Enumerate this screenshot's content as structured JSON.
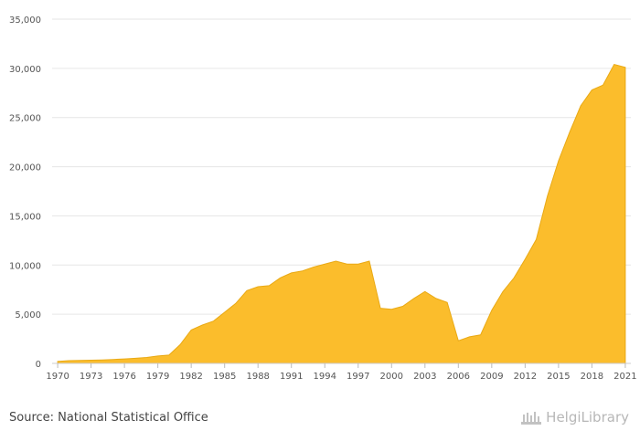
{
  "source_text": "Source: National Statistical Office",
  "brand": "HelgiLibrary",
  "colors": {
    "area": "#fbbd2c",
    "area_stroke": "#e9a914",
    "grid": "#e6e6e6",
    "text": "#555555"
  },
  "chart_data": {
    "type": "area",
    "title": "",
    "xlabel": "",
    "ylabel": "",
    "ylim": [
      0,
      35000
    ],
    "yticks": [
      0,
      5000,
      10000,
      15000,
      20000,
      25000,
      30000,
      35000
    ],
    "ytick_labels": [
      "0",
      "5,000",
      "10,000",
      "15,000",
      "20,000",
      "25,000",
      "30,000",
      "35,000"
    ],
    "xticks": [
      "1970",
      "1973",
      "1976",
      "1979",
      "1982",
      "1985",
      "1988",
      "1991",
      "1994",
      "1997",
      "2000",
      "2003",
      "2006",
      "2009",
      "2012",
      "2015",
      "2018",
      "2021"
    ],
    "grid": true,
    "legend": "none",
    "series": [
      {
        "x": [
          1970,
          1971,
          1972,
          1973,
          1974,
          1975,
          1976,
          1977,
          1978,
          1979,
          1980,
          1981,
          1982,
          1983,
          1984,
          1985,
          1986,
          1987,
          1988,
          1989,
          1990,
          1991,
          1992,
          1993,
          1994,
          1995,
          1996,
          1997,
          1998,
          1999,
          2000,
          2001,
          2002,
          2003,
          2004,
          2005,
          2006,
          2007,
          2008,
          2009,
          2010,
          2011,
          2012,
          2013,
          2014,
          2015,
          2016,
          2017,
          2018,
          2019,
          2020,
          2021
        ],
        "values": [
          200,
          280,
          300,
          320,
          350,
          400,
          450,
          520,
          600,
          750,
          850,
          1900,
          3400,
          3900,
          4300,
          5200,
          6100,
          7400,
          7800,
          7900,
          8700,
          9200,
          9400,
          9800,
          10100,
          10400,
          10100,
          10100,
          10400,
          5600,
          5500,
          5800,
          6600,
          7300,
          6600,
          6200,
          2300,
          2700,
          2900,
          5400,
          7300,
          8700,
          10600,
          12600,
          17000,
          20600,
          23500,
          26200,
          27800,
          28300,
          30400,
          30100
        ]
      }
    ]
  }
}
